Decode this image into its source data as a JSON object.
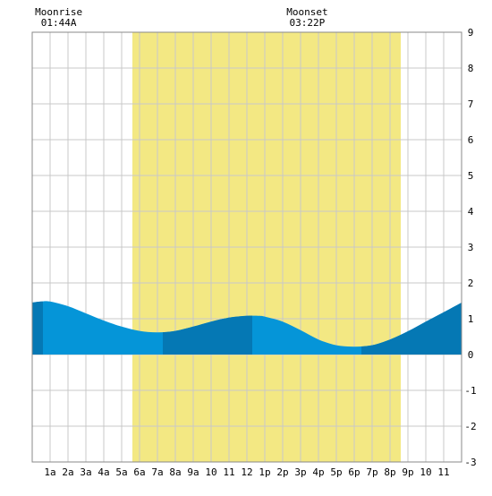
{
  "moon": {
    "rise_label": "Moonrise",
    "rise_time": "01:44A",
    "set_label": "Moonset",
    "set_time": "03:22P"
  },
  "chart_data": {
    "type": "area",
    "title": "",
    "xlabel": "",
    "ylabel": "",
    "x_range_hours": [
      0,
      24
    ],
    "ylim": [
      -3,
      9
    ],
    "yticks": [
      -3,
      -2,
      -1,
      0,
      1,
      2,
      3,
      4,
      5,
      6,
      7,
      8,
      9
    ],
    "y_axis_side": "right",
    "grid": true,
    "x_tick_labels": [
      {
        "hour": 1,
        "label": "1a"
      },
      {
        "hour": 2,
        "label": "2a"
      },
      {
        "hour": 3,
        "label": "3a"
      },
      {
        "hour": 4,
        "label": "4a"
      },
      {
        "hour": 5,
        "label": "5a"
      },
      {
        "hour": 6,
        "label": "6a"
      },
      {
        "hour": 7,
        "label": "7a"
      },
      {
        "hour": 8,
        "label": "8a"
      },
      {
        "hour": 9,
        "label": "9a"
      },
      {
        "hour": 10,
        "label": "10"
      },
      {
        "hour": 11,
        "label": "11"
      },
      {
        "hour": 12,
        "label": "12"
      },
      {
        "hour": 13,
        "label": "1p"
      },
      {
        "hour": 14,
        "label": "2p"
      },
      {
        "hour": 15,
        "label": "3p"
      },
      {
        "hour": 16,
        "label": "4p"
      },
      {
        "hour": 17,
        "label": "5p"
      },
      {
        "hour": 18,
        "label": "6p"
      },
      {
        "hour": 19,
        "label": "7p"
      },
      {
        "hour": 20,
        "label": "8p"
      },
      {
        "hour": 21,
        "label": "9p"
      },
      {
        "hour": 22,
        "label": "10"
      },
      {
        "hour": 23,
        "label": "11"
      }
    ],
    "daylight": {
      "start_hour": 5.6,
      "end_hour": 20.6
    },
    "moonrise_hour": 1.73,
    "moonset_hour": 15.37,
    "series": [
      {
        "x": [
          0,
          0.5,
          1,
          2,
          3,
          4,
          5,
          6,
          7,
          8,
          9,
          10,
          11,
          12,
          12.7,
          13,
          14,
          15,
          16,
          17,
          18,
          19,
          20,
          21,
          22,
          23,
          24
        ],
        "values": [
          1.45,
          1.48,
          1.48,
          1.35,
          1.15,
          0.95,
          0.78,
          0.66,
          0.62,
          0.66,
          0.78,
          0.92,
          1.03,
          1.08,
          1.08,
          1.06,
          0.92,
          0.68,
          0.42,
          0.26,
          0.22,
          0.26,
          0.42,
          0.65,
          0.92,
          1.18,
          1.45
        ]
      }
    ],
    "shade_bands_hours": [
      [
        0,
        0.6
      ],
      [
        7.3,
        12.3
      ],
      [
        18.4,
        24
      ]
    ],
    "colors": {
      "background": "#ffffff",
      "daylight": "#f3e883",
      "grid": "#c8c8c8",
      "frame": "#888888",
      "tide_light": "#0595d8",
      "tide_dark": "#0578b4",
      "text": "#000000"
    }
  }
}
